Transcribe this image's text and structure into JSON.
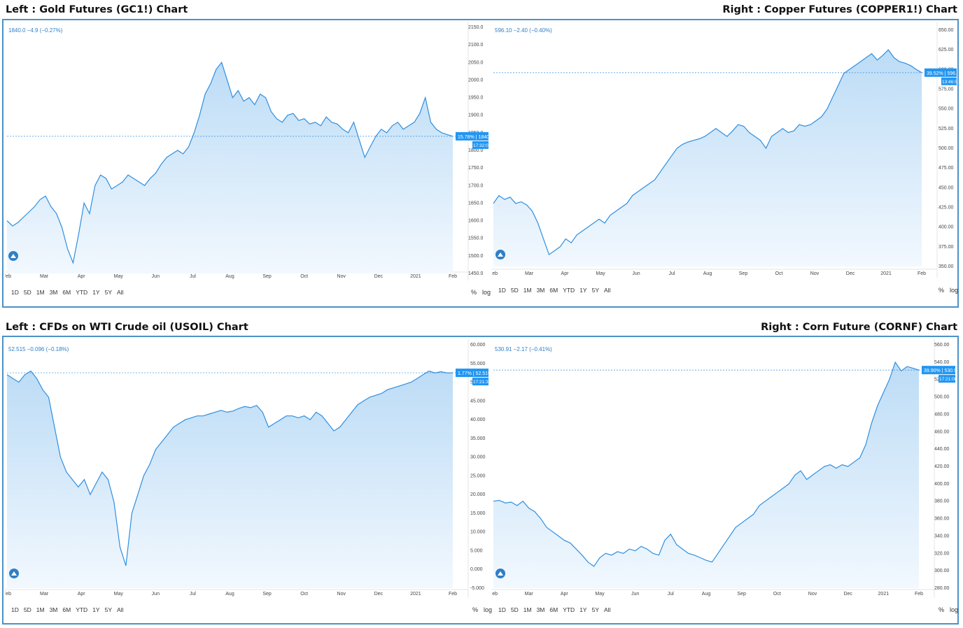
{
  "titles": {
    "top_left": "Left : Gold Futures (GC1!) Chart",
    "top_right": "Right : Copper Futures (COPPER1!) Chart",
    "bottom_left": "Left : CFDs on WTI Crude oil (USOIL) Chart",
    "bottom_right": "Right : Corn Future (CORNF) Chart"
  },
  "range_buttons": [
    "1D",
    "5D",
    "1M",
    "3M",
    "6M",
    "YTD",
    "1Y",
    "5Y",
    "All"
  ],
  "toggles": {
    "percent": "%",
    "log": "log"
  },
  "colors": {
    "line": "#2f8fe0",
    "fill_top": "#bcdcf6",
    "fill_bottom": "#f2f8fe",
    "frame": "#4d92c8",
    "tag": "#2196f3"
  },
  "chart_data": [
    {
      "id": "gold",
      "type": "area",
      "legend": "1840.0 −4.9 (−0.27%)",
      "x_ticks": [
        "Feb",
        "Mar",
        "Apr",
        "May",
        "Jun",
        "Jul",
        "Aug",
        "Sep",
        "Oct",
        "Nov",
        "Dec",
        "2021",
        "Feb"
      ],
      "y_ticks": [
        "2150.0",
        "2100.0",
        "2050.0",
        "2000.0",
        "1950.0",
        "1900.0",
        "1850.0",
        "1800.0",
        "1750.0",
        "1700.0",
        "1650.0",
        "1600.0",
        "1550.0",
        "1500.0",
        "1450.0"
      ],
      "ylim": [
        1450,
        2150
      ],
      "values": [
        1600,
        1585,
        1595,
        1610,
        1625,
        1640,
        1660,
        1670,
        1640,
        1620,
        1580,
        1520,
        1480,
        1560,
        1650,
        1620,
        1700,
        1730,
        1720,
        1690,
        1700,
        1710,
        1730,
        1720,
        1710,
        1700,
        1720,
        1735,
        1760,
        1780,
        1790,
        1800,
        1790,
        1810,
        1850,
        1900,
        1960,
        1990,
        2030,
        2050,
        2000,
        1950,
        1970,
        1940,
        1950,
        1930,
        1960,
        1950,
        1910,
        1890,
        1880,
        1900,
        1905,
        1885,
        1890,
        1875,
        1880,
        1870,
        1895,
        1880,
        1875,
        1860,
        1850,
        1880,
        1830,
        1780,
        1810,
        1840,
        1860,
        1850,
        1870,
        1880,
        1860,
        1870,
        1880,
        1905,
        1950,
        1880,
        1860,
        1850,
        1845,
        1840
      ],
      "last_value": "1840.0",
      "change_pct": "15.78%",
      "countdown": "17:32:07"
    },
    {
      "id": "copper",
      "type": "area",
      "legend": "596.10 −2.40 (−0.40%)",
      "x_ticks": [
        "Feb",
        "Mar",
        "Apr",
        "May",
        "Jun",
        "Jul",
        "Aug",
        "Sep",
        "Oct",
        "Nov",
        "Dec",
        "2021",
        "Feb"
      ],
      "y_ticks": [
        "650.00",
        "625.00",
        "600.00",
        "575.00",
        "550.00",
        "525.00",
        "500.00",
        "475.00",
        "450.00",
        "425.00",
        "400.00",
        "375.00",
        "350.00"
      ],
      "ylim": [
        350,
        650
      ],
      "values": [
        430,
        440,
        435,
        438,
        430,
        432,
        428,
        420,
        405,
        385,
        365,
        370,
        375,
        385,
        380,
        390,
        395,
        400,
        405,
        410,
        405,
        415,
        420,
        425,
        430,
        440,
        445,
        450,
        455,
        460,
        470,
        480,
        490,
        500,
        505,
        508,
        510,
        512,
        515,
        520,
        525,
        520,
        515,
        522,
        530,
        528,
        520,
        515,
        510,
        500,
        515,
        520,
        525,
        520,
        522,
        530,
        528,
        530,
        535,
        540,
        550,
        565,
        580,
        595,
        600,
        605,
        610,
        615,
        620,
        612,
        618,
        625,
        615,
        610,
        608,
        605,
        600,
        596
      ],
      "last_value": "596.10",
      "change_pct": "39.52%",
      "countdown": "13:46:50"
    },
    {
      "id": "usoil",
      "type": "area",
      "legend": "52.515 −0.096 (−0.18%)",
      "x_ticks": [
        "Feb",
        "Mar",
        "Apr",
        "May",
        "Jun",
        "Jul",
        "Aug",
        "Sep",
        "Oct",
        "Nov",
        "Dec",
        "2021",
        "Feb"
      ],
      "y_ticks": [
        "60.000",
        "55.000",
        "50.000",
        "45.000",
        "40.000",
        "35.000",
        "30.000",
        "25.000",
        "20.000",
        "15.000",
        "10.000",
        "5.000",
        "0.000",
        "-5.000"
      ],
      "ylim": [
        -5,
        60
      ],
      "values": [
        52,
        51,
        50,
        52,
        53,
        51,
        48,
        46,
        38,
        30,
        26,
        24,
        22,
        24,
        20,
        23,
        26,
        24,
        18,
        6,
        1,
        15,
        20,
        25,
        28,
        32,
        34,
        36,
        38,
        39,
        40,
        40.5,
        41,
        41,
        41.5,
        42,
        42.5,
        42,
        42.3,
        43,
        43.5,
        43.2,
        43.8,
        42,
        38,
        39,
        40,
        41,
        41,
        40.5,
        41,
        40,
        42,
        41,
        39,
        37,
        38,
        40,
        42,
        44,
        45,
        46,
        46.5,
        47,
        48,
        48.5,
        49,
        49.5,
        50,
        51,
        52,
        53,
        52.5,
        52.8,
        52.5,
        52.515
      ],
      "last_value": "52.515",
      "change_pct": "1.77%",
      "countdown": "17:21:31"
    },
    {
      "id": "corn",
      "type": "area",
      "legend": "530.91 −2.17 (−0.41%)",
      "x_ticks": [
        "Feb",
        "Mar",
        "Apr",
        "May",
        "Jun",
        "Jul",
        "Aug",
        "Sep",
        "Oct",
        "Nov",
        "Dec",
        "2021",
        "Feb"
      ],
      "y_ticks": [
        "560.00",
        "540.00",
        "520.00",
        "500.00",
        "480.00",
        "460.00",
        "440.00",
        "420.00",
        "400.00",
        "380.00",
        "360.00",
        "340.00",
        "320.00",
        "300.00",
        "280.00"
      ],
      "ylim": [
        280,
        560
      ],
      "values": [
        380,
        381,
        378,
        379,
        375,
        380,
        372,
        368,
        360,
        350,
        345,
        340,
        335,
        332,
        325,
        318,
        310,
        305,
        315,
        320,
        318,
        322,
        320,
        325,
        323,
        328,
        325,
        320,
        318,
        335,
        342,
        330,
        325,
        320,
        318,
        315,
        312,
        310,
        320,
        330,
        340,
        350,
        355,
        360,
        365,
        375,
        380,
        385,
        390,
        395,
        400,
        410,
        415,
        405,
        410,
        415,
        420,
        422,
        418,
        422,
        420,
        425,
        430,
        445,
        470,
        490,
        505,
        520,
        540,
        530,
        535,
        533,
        530.91
      ],
      "last_value": "530.91",
      "change_pct": "39.90%",
      "countdown": "17:21:06"
    }
  ]
}
